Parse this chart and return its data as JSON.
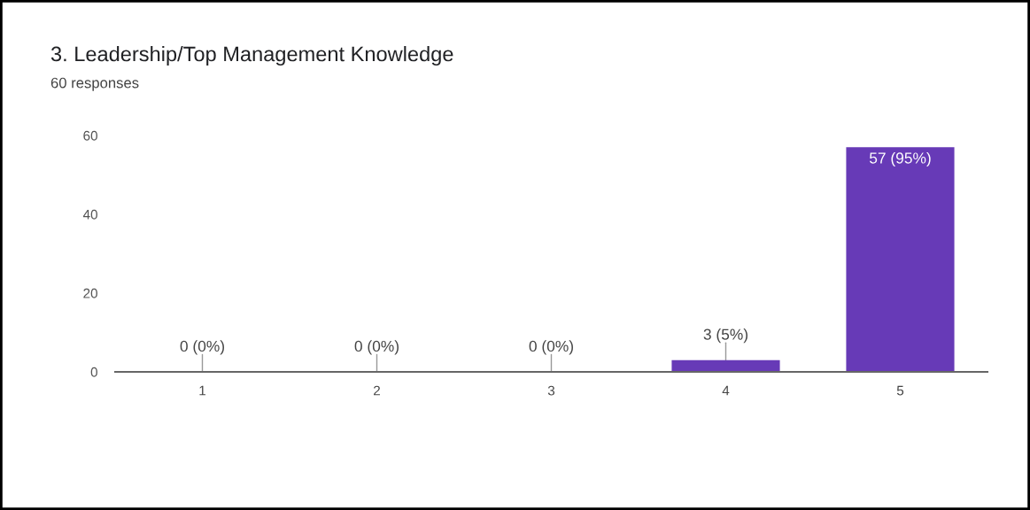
{
  "chart_data": {
    "type": "bar",
    "title": "3. Leadership/Top Management Knowledge",
    "subtitle": "60 responses",
    "categories": [
      "1",
      "2",
      "3",
      "4",
      "5"
    ],
    "values": [
      0,
      0,
      0,
      3,
      57
    ],
    "value_labels": [
      "0 (0%)",
      "0 (0%)",
      "0 (0%)",
      "3 (5%)",
      "57 (95%)"
    ],
    "color": "#673ab7",
    "ylim": [
      0,
      60
    ],
    "yticks": [
      0,
      20,
      40,
      60
    ]
  }
}
